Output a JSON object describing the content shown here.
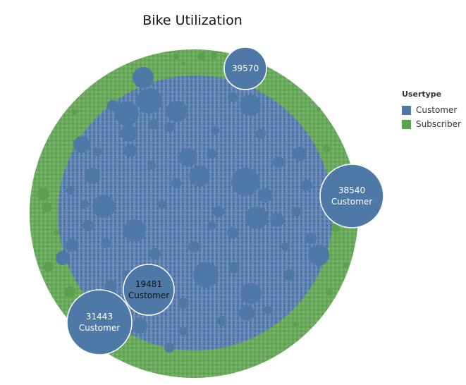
{
  "chart_data": {
    "type": "packed-bubble",
    "title": "Bike Utilization",
    "legend": {
      "title": "Usertype",
      "placement": "right",
      "entries": [
        {
          "name": "Customer",
          "color": "#4e79a7"
        },
        {
          "name": "Subscriber",
          "color": "#59a14f"
        }
      ]
    },
    "labeled_bubbles": [
      {
        "value": "39570",
        "usertype": ""
      },
      {
        "value": "38540",
        "usertype": "Customer"
      },
      {
        "value": "31443",
        "usertype": "Customer"
      },
      {
        "value": "19481",
        "usertype": "Customer"
      }
    ]
  }
}
